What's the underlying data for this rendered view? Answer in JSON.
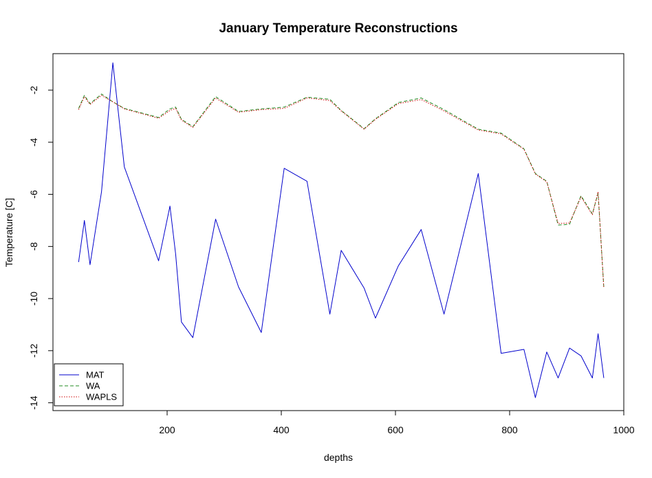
{
  "chart_data": {
    "type": "line",
    "title": "January Temperature Reconstructions",
    "xlabel": "depths",
    "ylabel": "Temperature [C]",
    "xlim": [
      0,
      1000
    ],
    "ylim": [
      -14.3,
      -0.6
    ],
    "xticks": [
      200,
      400,
      600,
      800,
      1000
    ],
    "yticks": [
      -2,
      -4,
      -6,
      -8,
      -10,
      -12,
      -14
    ],
    "legend_position": "bottom-left",
    "x": [
      45,
      55,
      65,
      85,
      105,
      125,
      185,
      205,
      215,
      225,
      245,
      285,
      325,
      365,
      405,
      445,
      485,
      505,
      545,
      565,
      605,
      645,
      685,
      745,
      785,
      825,
      845,
      865,
      885,
      905,
      925,
      945,
      955,
      965
    ],
    "series": [
      {
        "name": "MAT",
        "color": "#0000cc",
        "dash": "solid",
        "values": [
          -8.6,
          -7.0,
          -8.7,
          -5.9,
          -0.95,
          -4.95,
          -8.55,
          -6.45,
          -8.3,
          -10.9,
          -11.5,
          -6.95,
          -9.55,
          -11.3,
          -5.0,
          -5.5,
          -10.6,
          -8.15,
          -9.6,
          -10.75,
          -8.75,
          -7.35,
          -10.6,
          -5.2,
          -12.1,
          -11.95,
          -13.8,
          -12.05,
          -13.05,
          -11.9,
          -12.2,
          -13.05,
          -11.35,
          -13.05
        ]
      },
      {
        "name": "WA",
        "color": "#228b22",
        "dash": "dashed",
        "values": [
          -2.7,
          -2.2,
          -2.52,
          -2.15,
          -2.45,
          -2.7,
          -3.05,
          -2.72,
          -2.65,
          -3.12,
          -3.4,
          -2.25,
          -2.82,
          -2.72,
          -2.65,
          -2.27,
          -2.35,
          -2.78,
          -3.48,
          -3.1,
          -2.48,
          -2.3,
          -2.75,
          -3.5,
          -3.65,
          -4.25,
          -5.2,
          -5.5,
          -7.18,
          -7.15,
          -6.05,
          -6.75,
          -5.95,
          -9.55
        ]
      },
      {
        "name": "WAPLS",
        "color": "#cc0000",
        "dash": "dotted",
        "values": [
          -2.75,
          -2.25,
          -2.55,
          -2.2,
          -2.45,
          -2.72,
          -3.08,
          -2.78,
          -2.7,
          -3.15,
          -3.43,
          -2.3,
          -2.85,
          -2.75,
          -2.7,
          -2.3,
          -2.4,
          -2.8,
          -3.5,
          -3.12,
          -2.52,
          -2.36,
          -2.8,
          -3.53,
          -3.68,
          -4.27,
          -5.22,
          -5.52,
          -7.12,
          -7.1,
          -6.1,
          -6.78,
          -5.9,
          -9.6
        ]
      }
    ]
  }
}
